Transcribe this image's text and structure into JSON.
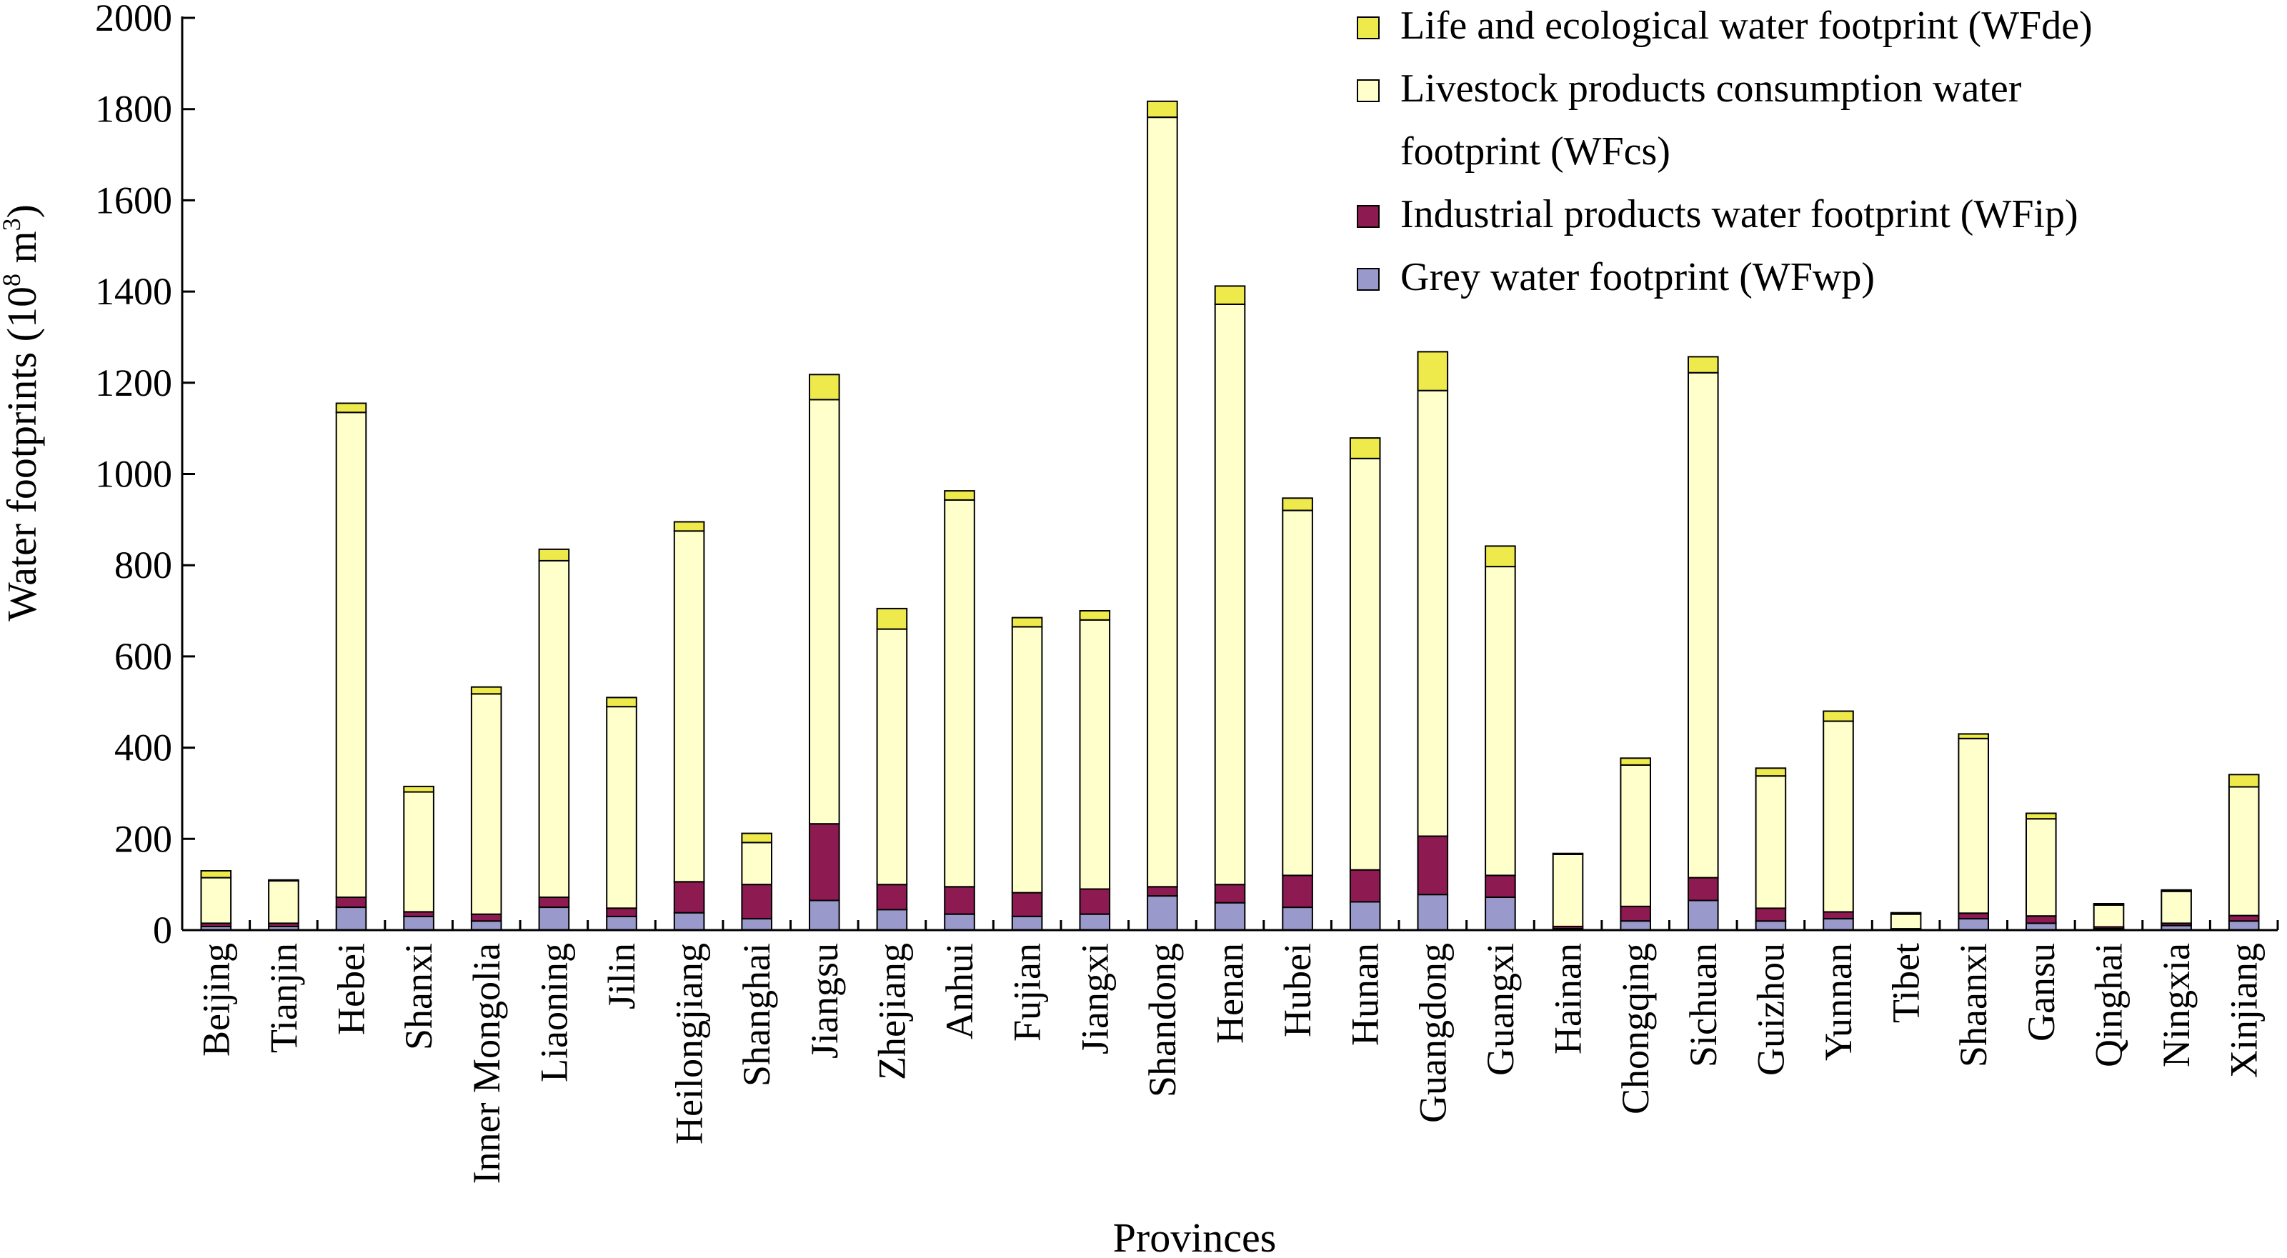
{
  "chart_data": {
    "type": "bar",
    "stacked": true,
    "xlabel": "Provinces",
    "ylabel": "Water footprints (10",
    "ylabel_sup": "8",
    "ylabel_unit": " m",
    "ylabel_sup2": "3",
    "ylabel_close": ")",
    "ylim": [
      0,
      2000
    ],
    "yticks": [
      "0",
      "200",
      "400",
      "600",
      "800",
      "1000",
      "1200",
      "1400",
      "1600",
      "1800",
      "2000"
    ],
    "grid": false,
    "legend_position": "top-right",
    "legend": [
      {
        "series": 3,
        "lines": [
          "Life and ecological water footprint (WFde)"
        ]
      },
      {
        "series": 2,
        "lines": [
          "Livestock products consumption water",
          "footprint (WFcs)"
        ]
      },
      {
        "series": 1,
        "lines": [
          "Industrial products water footprint (WFip)"
        ]
      },
      {
        "series": 0,
        "lines": [
          "Grey water footprint (WFwp)"
        ]
      }
    ],
    "categories": [
      "Beijing",
      "Tianjin",
      "Hebei",
      "Shanxi",
      "Inner Mongolia",
      "Liaoning",
      "Jilin",
      "Heilongjiang",
      "Shanghai",
      "Jiangsu",
      "Zhejiang",
      "Anhui",
      "Fujian",
      "Jiangxi",
      "Shandong",
      "Henan",
      "Hubei",
      "Hunan",
      "Guangdong",
      "Guangxi",
      "Hainan",
      "Chongqing",
      "Sichuan",
      "Guizhou",
      "Yunnan",
      "Tibet",
      "Shaanxi",
      "Gansu",
      "Qinghai",
      "Ningxia",
      "Xinjiang"
    ],
    "series": [
      {
        "name": "Grey water footprint (WFwp)",
        "color": "#9999cc",
        "values": [
          8,
          8,
          50,
          30,
          20,
          50,
          30,
          38,
          25,
          65,
          45,
          35,
          30,
          35,
          75,
          60,
          50,
          62,
          78,
          72,
          3,
          20,
          65,
          20,
          25,
          2,
          25,
          15,
          3,
          10,
          20
        ]
      },
      {
        "name": "Industrial products water footprint (WFip)",
        "color": "#8e1a52",
        "values": [
          7,
          7,
          22,
          10,
          15,
          22,
          18,
          68,
          75,
          168,
          55,
          60,
          52,
          55,
          20,
          40,
          70,
          70,
          128,
          48,
          5,
          32,
          50,
          28,
          15,
          1,
          12,
          16,
          4,
          5,
          12
        ]
      },
      {
        "name": "Livestock products consumption water footprint (WFcs)",
        "color": "#ffffcc",
        "values": [
          100,
          93,
          1063,
          263,
          483,
          738,
          442,
          769,
          92,
          930,
          560,
          848,
          583,
          590,
          1687,
          1272,
          800,
          902,
          977,
          677,
          158,
          310,
          1107,
          290,
          418,
          32,
          383,
          213,
          48,
          70,
          282
        ]
      },
      {
        "name": "Life and ecological water footprint (WFde)",
        "color": "#eeea4c",
        "values": [
          15,
          2,
          20,
          12,
          15,
          25,
          20,
          20,
          20,
          55,
          45,
          20,
          20,
          20,
          35,
          40,
          27,
          45,
          85,
          45,
          2,
          15,
          35,
          17,
          22,
          3,
          10,
          12,
          3,
          3,
          27
        ]
      }
    ]
  }
}
